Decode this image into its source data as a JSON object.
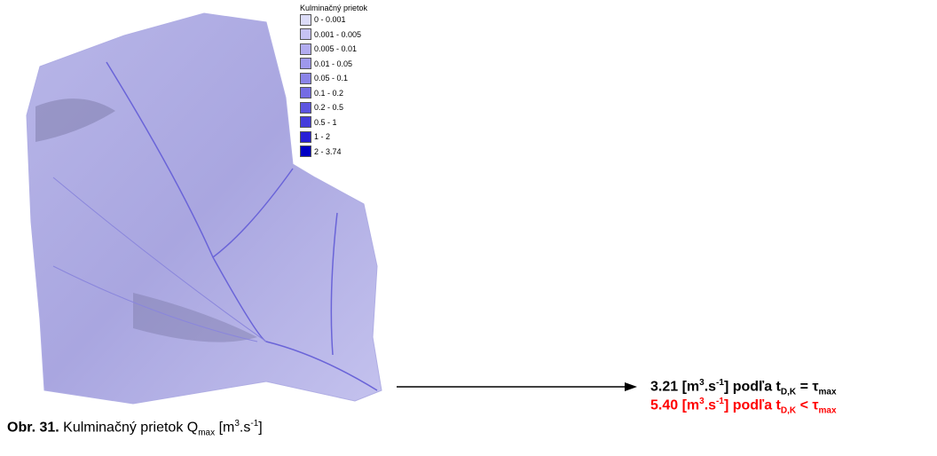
{
  "legend": {
    "title": "Kulminačný prietok",
    "items": [
      {
        "label": "0 - 0.001",
        "color": "#dcdcf8"
      },
      {
        "label": "0.001 - 0.005",
        "color": "#c6c2f4"
      },
      {
        "label": "0.005 - 0.01",
        "color": "#b2acf0"
      },
      {
        "label": "0.01 - 0.05",
        "color": "#9e98ec"
      },
      {
        "label": "0.05 - 0.1",
        "color": "#8a84e8"
      },
      {
        "label": "0.1 - 0.2",
        "color": "#746ce4"
      },
      {
        "label": "0.2 - 0.5",
        "color": "#5c54e0"
      },
      {
        "label": "0.5 - 1",
        "color": "#443cdc"
      },
      {
        "label": "1 - 2",
        "color": "#2820d6"
      },
      {
        "label": "2 - 3.74",
        "color": "#0000c4"
      }
    ]
  },
  "results": [
    {
      "parts": [
        "3.21 [m",
        "3",
        ".s",
        "-1",
        "] podľa t",
        "D,K",
        " = τ",
        "max"
      ],
      "color": "#000000"
    },
    {
      "parts": [
        "5.40 [m",
        "3",
        ".s",
        "-1",
        "] podľa t",
        "D,K",
        " < τ",
        "max"
      ],
      "color": "#ff0000"
    }
  ],
  "caption": {
    "parts": [
      "Obr. 31.",
      " Kulminačný prietok Q",
      "max",
      " [m",
      "3",
      ".s",
      "-1",
      "]"
    ]
  }
}
